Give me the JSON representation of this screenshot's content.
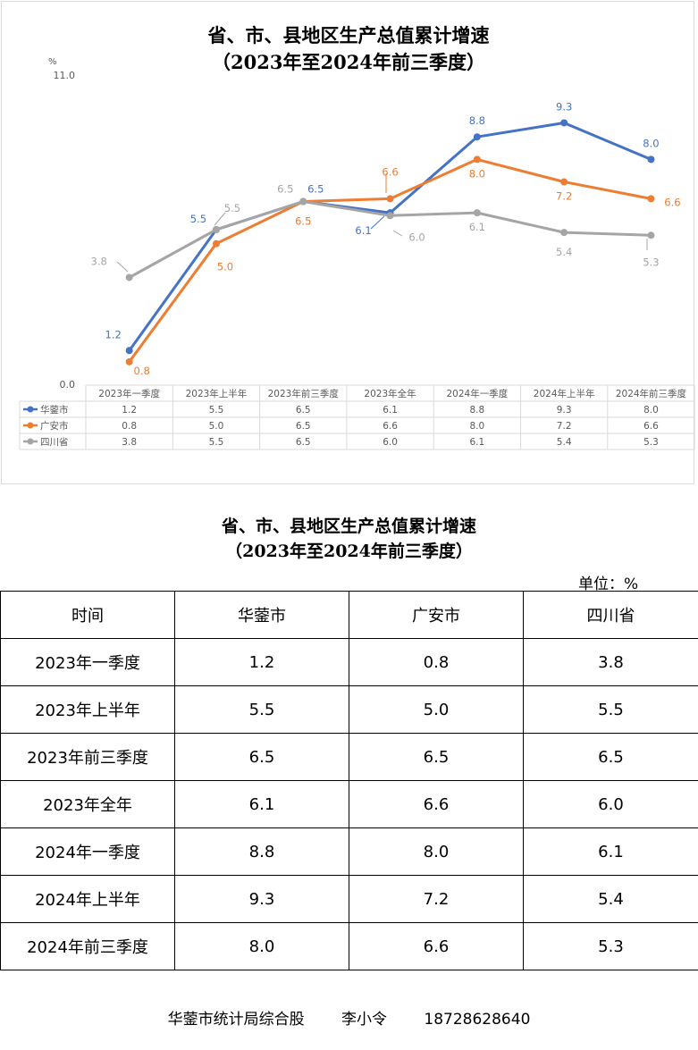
{
  "chart": {
    "title_line1": "省、市、县地区生产总值累计增速",
    "title_line2": "（2023年至2024年前三季度）",
    "unit_label": "%",
    "colors": {
      "huaying": "#4472c4",
      "guangan": "#ed7d31",
      "sichuan": "#a5a5a5"
    }
  },
  "chart_data": {
    "type": "line",
    "title": "省、市、县地区生产总值累计增速（2023年至2024年前三季度）",
    "ylabel": "%",
    "ylim": [
      0,
      11
    ],
    "yticks": [
      "0.0",
      "11.0"
    ],
    "categories": [
      "2023年一季度",
      "2023年上半年",
      "2023年前三季度",
      "2023年全年",
      "2024年一季度",
      "2024年上半年",
      "2024年前三季度"
    ],
    "series": [
      {
        "name": "华蓥市",
        "values": [
          1.2,
          5.5,
          6.5,
          6.1,
          8.8,
          9.3,
          8.0
        ],
        "labels": [
          "1.2",
          "5.5",
          "6.5",
          "6.1",
          "8.8",
          "9.3",
          "8.0"
        ]
      },
      {
        "name": "广安市",
        "values": [
          0.8,
          5.0,
          6.5,
          6.6,
          8.0,
          7.2,
          6.6
        ],
        "labels": [
          "0.8",
          "5.0",
          "6.5",
          "6.6",
          "8.0",
          "7.2",
          "6.6"
        ]
      },
      {
        "name": "四川省",
        "values": [
          3.8,
          5.5,
          6.5,
          6.0,
          6.1,
          5.4,
          5.3
        ],
        "labels": [
          "3.8",
          "5.5",
          "6.5",
          "6.0",
          "6.1",
          "5.4",
          "5.3"
        ]
      }
    ],
    "grid": false,
    "legend": "data-table"
  },
  "table": {
    "title_line1": "省、市、县地区生产总值累计增速",
    "title_line2": "（2023年至2024年前三季度）",
    "unit": "单位：%",
    "headers": [
      "时间",
      "华蓥市",
      "广安市",
      "四川省"
    ],
    "rows": [
      [
        "2023年一季度",
        "1.2",
        "0.8",
        "3.8"
      ],
      [
        "2023年上半年",
        "5.5",
        "5.0",
        "5.5"
      ],
      [
        "2023年前三季度",
        "6.5",
        "6.5",
        "6.5"
      ],
      [
        "2023年全年",
        "6.1",
        "6.6",
        "6.0"
      ],
      [
        "2024年一季度",
        "8.8",
        "8.0",
        "6.1"
      ],
      [
        "2024年上半年",
        "9.3",
        "7.2",
        "5.4"
      ],
      [
        "2024年前三季度",
        "8.0",
        "6.6",
        "5.3"
      ]
    ]
  },
  "footer": {
    "department": "华蓥市统计局综合股",
    "person": "李小令",
    "phone": "18728628640"
  }
}
